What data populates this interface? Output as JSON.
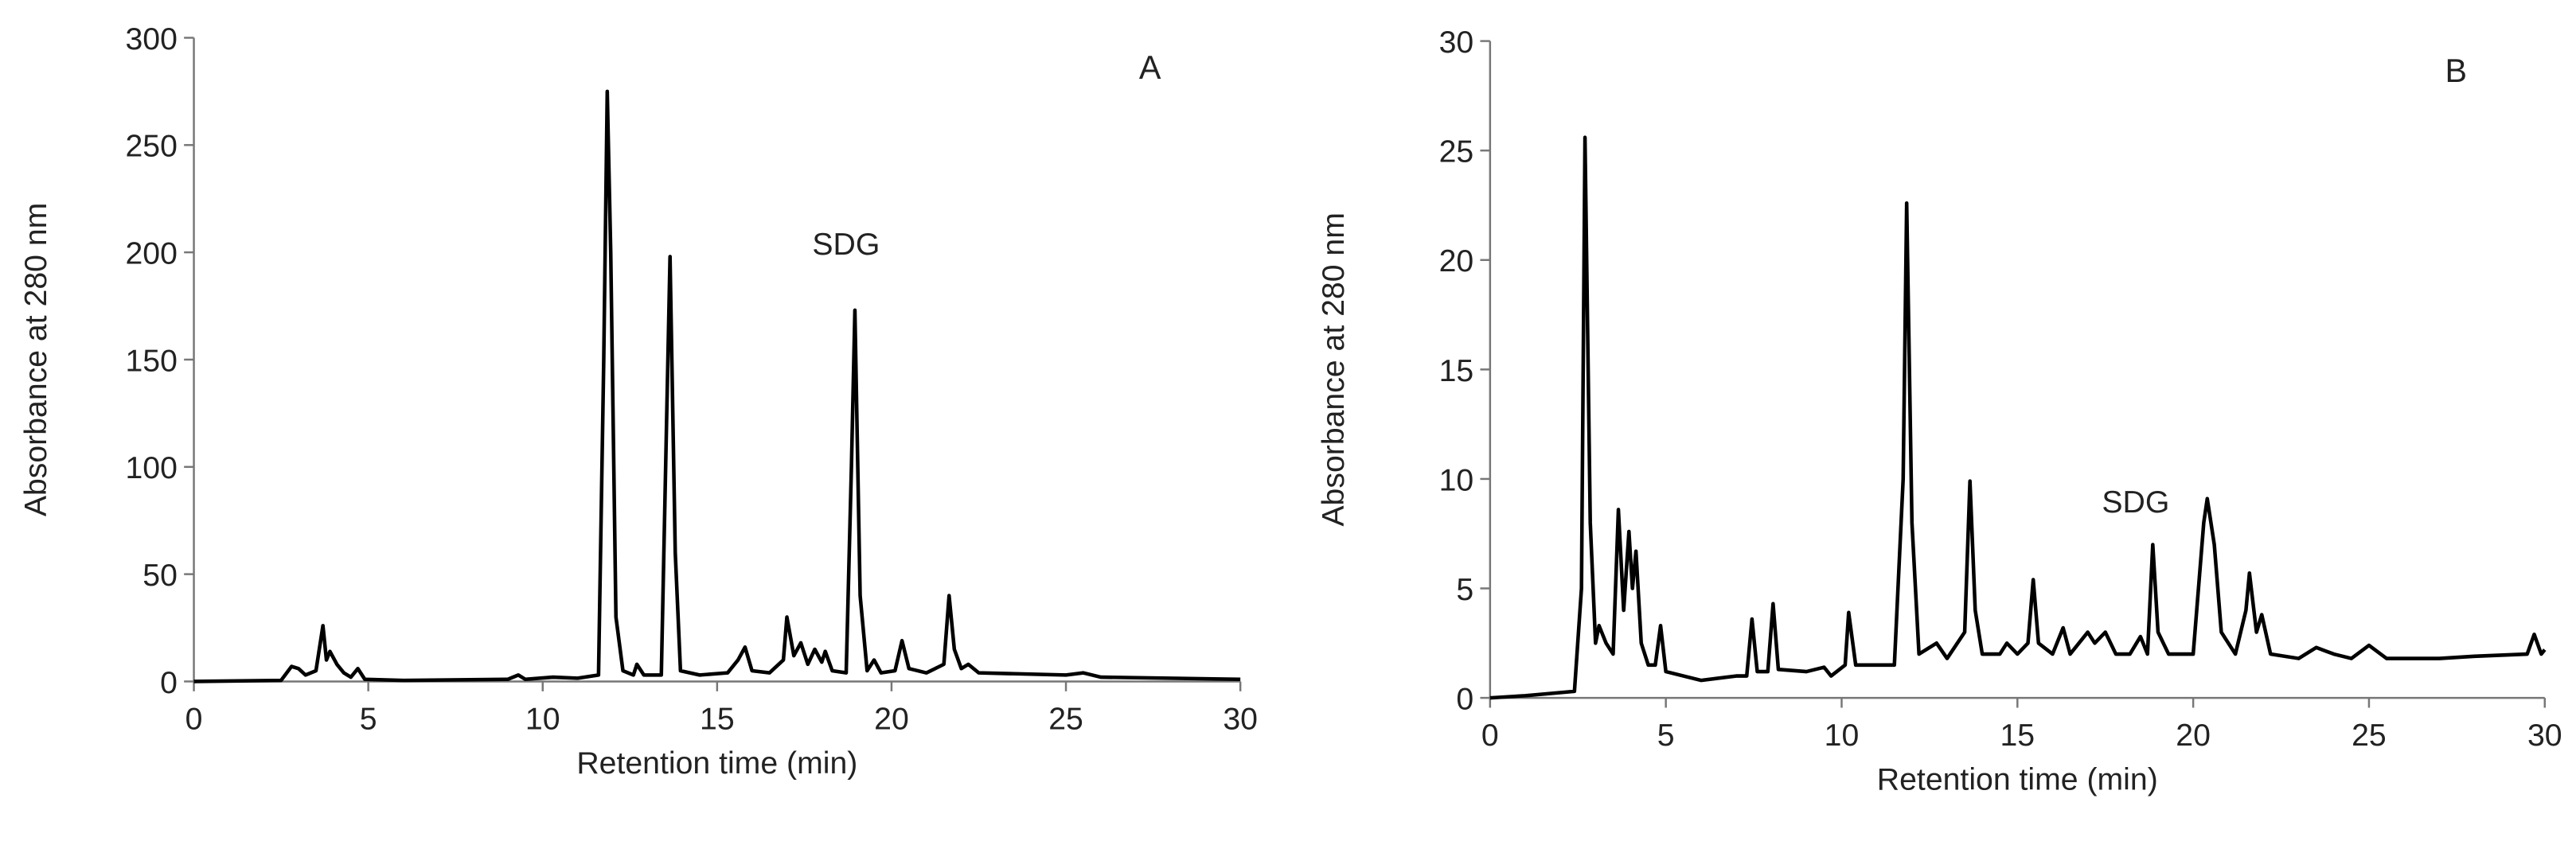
{
  "chart_data": [
    {
      "type": "line",
      "ylabel": "Absorbance at 280 nm",
      "xlabel": "Retention time (min)",
      "panel": "A",
      "annotation": "SDG",
      "color": "#000000",
      "xlim": [
        0,
        30
      ],
      "xticks": [
        0,
        5,
        10,
        15,
        20,
        25,
        30
      ],
      "ylim": [
        0,
        300
      ],
      "yticks": [
        0,
        50,
        100,
        150,
        200,
        250,
        300
      ],
      "x": [
        0,
        2.5,
        2.8,
        3.0,
        3.2,
        3.5,
        3.7,
        3.8,
        3.9,
        4.1,
        4.3,
        4.5,
        4.7,
        4.9,
        6,
        9,
        9.3,
        9.5,
        10.3,
        11,
        11.6,
        11.75,
        11.85,
        11.95,
        12.1,
        12.3,
        12.6,
        12.7,
        12.9,
        13.4,
        13.55,
        13.65,
        13.8,
        13.95,
        14.5,
        15.3,
        15.6,
        15.8,
        16,
        16.5,
        16.9,
        17.0,
        17.2,
        17.4,
        17.6,
        17.8,
        18,
        18.1,
        18.3,
        18.7,
        18.85,
        18.95,
        19.1,
        19.3,
        19.5,
        19.7,
        20.1,
        20.3,
        20.5,
        21,
        21.5,
        21.65,
        21.8,
        22,
        22.2,
        22.5,
        25,
        25.5,
        26,
        30
      ],
      "values": [
        0,
        0.5,
        7,
        6,
        3,
        5,
        26,
        10,
        14,
        8,
        4,
        2,
        6,
        1,
        0.5,
        1,
        3,
        1,
        2,
        1.5,
        3,
        150,
        275,
        200,
        30,
        5,
        3,
        8,
        3,
        3,
        120,
        198,
        60,
        5,
        3,
        4,
        10,
        16,
        5,
        4,
        10,
        30,
        12,
        18,
        8,
        15,
        9,
        14,
        5,
        4,
        100,
        173,
        40,
        5,
        10,
        4,
        5,
        19,
        6,
        4,
        8,
        40,
        15,
        6,
        8,
        4,
        3,
        4,
        2,
        1
      ]
    },
    {
      "type": "line",
      "ylabel": "Absorbance at 280 nm",
      "xlabel": "Retention time (min)",
      "panel": "B",
      "annotation": "SDG",
      "color": "#000000",
      "xlim": [
        0,
        30
      ],
      "xticks": [
        0,
        5,
        10,
        15,
        20,
        25,
        30
      ],
      "ylim": [
        0,
        30
      ],
      "yticks": [
        0,
        5,
        10,
        15,
        20,
        25,
        30
      ],
      "x": [
        0,
        1,
        2.4,
        2.6,
        2.7,
        2.85,
        3,
        3.1,
        3.3,
        3.5,
        3.65,
        3.8,
        3.95,
        4.05,
        4.15,
        4.3,
        4.5,
        4.7,
        4.85,
        5,
        6,
        7,
        7.3,
        7.45,
        7.6,
        7.9,
        8.05,
        8.2,
        9,
        9.5,
        9.7,
        10.1,
        10.2,
        10.4,
        11.5,
        11.75,
        11.85,
        12,
        12.2,
        12.7,
        13,
        13.5,
        13.65,
        13.8,
        14,
        14.5,
        14.7,
        15,
        15.3,
        15.45,
        15.6,
        16,
        16.3,
        16.5,
        17,
        17.2,
        17.5,
        17.8,
        18.2,
        18.5,
        18.7,
        18.85,
        19,
        19.3,
        20,
        20.3,
        20.4,
        20.6,
        20.8,
        21.2,
        21.5,
        21.6,
        21.8,
        21.95,
        22.2,
        23,
        23.5,
        24,
        24.5,
        25,
        25.5,
        27,
        28,
        29.5,
        29.7,
        29.9,
        30
      ],
      "values": [
        0,
        0.1,
        0.3,
        5,
        25.6,
        8,
        2.5,
        3.3,
        2.5,
        2,
        8.6,
        4,
        7.6,
        5,
        6.7,
        2.5,
        1.5,
        1.5,
        3.3,
        1.2,
        0.8,
        1,
        1,
        3.6,
        1.2,
        1.2,
        4.3,
        1.3,
        1.2,
        1.4,
        1,
        1.5,
        3.9,
        1.5,
        1.5,
        10,
        22.6,
        8,
        2,
        2.5,
        1.8,
        3,
        9.9,
        4,
        2,
        2,
        2.5,
        2,
        2.5,
        5.4,
        2.5,
        2,
        3.2,
        2,
        3,
        2.5,
        3,
        2,
        2,
        2.8,
        2,
        7,
        3,
        2,
        2,
        8,
        9.1,
        7,
        3,
        2,
        4,
        5.7,
        3,
        3.8,
        2,
        1.8,
        2.3,
        2,
        1.8,
        2.4,
        1.8,
        1.8,
        1.9,
        2,
        2.9,
        2,
        2.2
      ]
    }
  ]
}
